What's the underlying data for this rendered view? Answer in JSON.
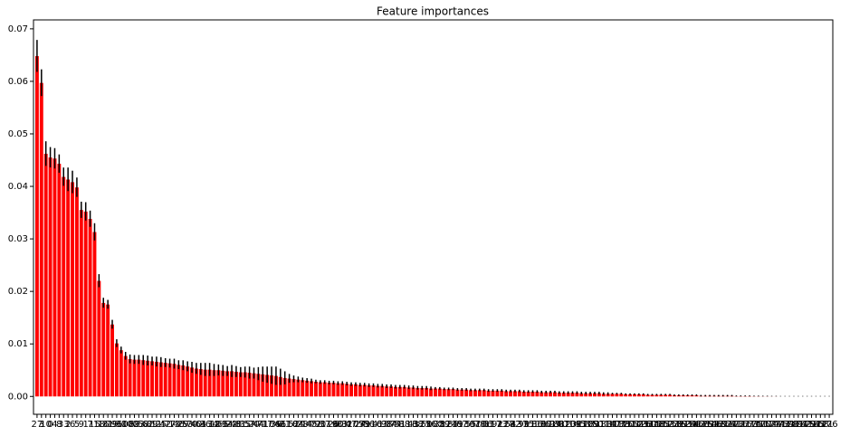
{
  "chart_data": {
    "type": "bar",
    "title": "Feature importances",
    "categories": [
      "27",
      "3",
      "10",
      "0",
      "4",
      "8",
      "33",
      "2",
      "6",
      "5",
      "9",
      "1",
      "7",
      "15",
      "18",
      "16",
      "31",
      "19",
      "96",
      "30",
      "108",
      "100",
      "69",
      "23",
      "58",
      "62",
      "89",
      "11",
      "25",
      "42",
      "77",
      "13",
      "46",
      "29",
      "53",
      "70",
      "40",
      "64",
      "36",
      "134",
      "12",
      "101",
      "65",
      "94",
      "22",
      "48",
      "81",
      "35",
      "57",
      "20",
      "44",
      "71",
      "17",
      "104",
      "39",
      "66",
      "21",
      "110",
      "52",
      "84",
      "28",
      "14",
      "45",
      "72",
      "90",
      "37",
      "119",
      "26",
      "60",
      "83",
      "32",
      "47",
      "105",
      "24",
      "79",
      "56",
      "116",
      "41",
      "63",
      "98",
      "34",
      "74",
      "51",
      "88",
      "113",
      "43",
      "68",
      "125",
      "50",
      "76",
      "102",
      "38",
      "59",
      "121",
      "85",
      "49",
      "67",
      "130",
      "55",
      "97",
      "78",
      "106",
      "61",
      "117",
      "92",
      "73",
      "127",
      "54",
      "82",
      "131",
      "99",
      "75",
      "111",
      "86",
      "136",
      "80",
      "118",
      "95",
      "140",
      "87",
      "123",
      "103",
      "145",
      "93",
      "128",
      "109",
      "150",
      "91",
      "133",
      "114",
      "147",
      "107",
      "138",
      "120",
      "155",
      "112",
      "143",
      "126",
      "160",
      "115",
      "148",
      "135",
      "152",
      "122",
      "158",
      "139",
      "163",
      "124",
      "156",
      "142",
      "166",
      "129",
      "161",
      "146",
      "169",
      "132",
      "164",
      "151",
      "172",
      "137",
      "167",
      "153",
      "175",
      "141",
      "170",
      "157",
      "177",
      "144",
      "173",
      "159",
      "178",
      "149",
      "174",
      "162",
      "179",
      "154",
      "165",
      "168",
      "171",
      "176"
    ],
    "values": [
      0.0648,
      0.0597,
      0.0462,
      0.0455,
      0.0453,
      0.0443,
      0.0418,
      0.0413,
      0.0408,
      0.0398,
      0.0355,
      0.0352,
      0.0338,
      0.0313,
      0.022,
      0.0178,
      0.0175,
      0.0137,
      0.0101,
      0.0088,
      0.0077,
      0.0071,
      0.007,
      0.007,
      0.0069,
      0.0068,
      0.0067,
      0.0066,
      0.0065,
      0.0064,
      0.0063,
      0.0062,
      0.006,
      0.0059,
      0.0057,
      0.0055,
      0.0053,
      0.0052,
      0.0051,
      0.0051,
      0.005,
      0.005,
      0.0049,
      0.0048,
      0.0048,
      0.0047,
      0.0046,
      0.0046,
      0.0045,
      0.0044,
      0.0043,
      0.0042,
      0.0041,
      0.004,
      0.0039,
      0.0037,
      0.0035,
      0.0034,
      0.0033,
      0.0032,
      0.0031,
      0.003,
      0.0029,
      0.0028,
      0.0027,
      0.0027,
      0.0026,
      0.0026,
      0.0025,
      0.0025,
      0.0024,
      0.0023,
      0.0023,
      0.0022,
      0.0022,
      0.0021,
      0.0021,
      0.002,
      0.002,
      0.0019,
      0.0019,
      0.0018,
      0.0018,
      0.0018,
      0.0017,
      0.0017,
      0.0016,
      0.0016,
      0.0016,
      0.0015,
      0.0015,
      0.0015,
      0.0014,
      0.0014,
      0.0014,
      0.0013,
      0.0013,
      0.0013,
      0.0012,
      0.0012,
      0.0012,
      0.0012,
      0.0011,
      0.0011,
      0.0011,
      0.0011,
      0.001,
      0.001,
      0.001,
      0.001,
      0.0009,
      0.0009,
      0.0009,
      0.0009,
      0.0008,
      0.0008,
      0.0008,
      0.0008,
      0.0007,
      0.0007,
      0.0007,
      0.0007,
      0.0007,
      0.0006,
      0.0006,
      0.0006,
      0.0006,
      0.0006,
      0.0005,
      0.0005,
      0.0005,
      0.0005,
      0.0005,
      0.0004,
      0.0004,
      0.0004,
      0.0004,
      0.0004,
      0.0003,
      0.0003,
      0.0003,
      0.0003,
      0.0003,
      0.0003,
      0.0002,
      0.0002,
      0.0002,
      0.0002,
      0.0002,
      0.0002,
      0.0001,
      0.0001,
      0.0001,
      0.0001,
      0.0001,
      0.0001,
      0.0001,
      0.0001,
      5e-05,
      5e-05,
      5e-05,
      5e-05,
      3e-05,
      3e-05,
      2e-05,
      2e-05,
      1e-05,
      1e-05,
      0,
      0,
      0,
      0,
      0,
      0,
      0,
      0,
      0,
      0,
      0,
      0
    ],
    "errors": [
      0.003,
      0.0025,
      0.0023,
      0.0019,
      0.0019,
      0.0017,
      0.0017,
      0.0022,
      0.0021,
      0.0018,
      0.0015,
      0.0017,
      0.0015,
      0.0016,
      0.0012,
      0.0009,
      0.0008,
      0.0008,
      0.0007,
      0.0006,
      0.0007,
      0.0008,
      0.0008,
      0.0008,
      0.0009,
      0.0009,
      0.0008,
      0.0009,
      0.0009,
      0.0008,
      0.0008,
      0.0009,
      0.0008,
      0.0009,
      0.0009,
      0.001,
      0.001,
      0.0011,
      0.0012,
      0.0012,
      0.0011,
      0.001,
      0.001,
      0.0009,
      0.0011,
      0.001,
      0.0009,
      0.001,
      0.0011,
      0.001,
      0.0012,
      0.0014,
      0.0015,
      0.0016,
      0.0017,
      0.0015,
      0.0012,
      0.0008,
      0.0006,
      0.0005,
      0.0004,
      0.0004,
      0.0004,
      0.0003,
      0.0003,
      0.0003,
      0.0003,
      0.0003,
      0.0003,
      0.0003,
      0.0003,
      0.0003,
      0.0003,
      0.0003,
      0.0003,
      0.0003,
      0.0003,
      0.0003,
      0.0003,
      0.0003,
      0.0003,
      0.0003,
      0.0003,
      0.0003,
      0.0003,
      0.0003,
      0.0003,
      0.0003,
      0.0003,
      0.0003,
      0.0002,
      0.0002,
      0.0002,
      0.0002,
      0.0002,
      0.0002,
      0.0002,
      0.0002,
      0.0002,
      0.0002,
      0.0002,
      0.0002,
      0.0002,
      0.0002,
      0.0002,
      0.0002,
      0.0002,
      0.0002,
      0.0002,
      0.0002,
      0.0002,
      0.0002,
      0.0002,
      0.0002,
      0.0002,
      0.0002,
      0.0002,
      0.0002,
      0.0002,
      0.0002,
      0.0002,
      0.0002,
      0.0002,
      0.0002,
      0.0002,
      0.0002,
      0.0002,
      0.0002,
      0.0002,
      0.0002,
      0.0001,
      0.0001,
      0.0001,
      0.0001,
      0.0001,
      0.0001,
      0.0001,
      0.0001,
      0.0001,
      0.0001,
      0.0001,
      0.0001,
      0.0001,
      0.0001,
      0.0001,
      0.0001,
      0.0001,
      0.0001,
      0.0001,
      0.0001,
      0.0001,
      0.0001,
      0.0001,
      0.0001,
      0.0001,
      0.0001,
      0.0001,
      0.0001,
      5e-05,
      5e-05,
      5e-05,
      5e-05,
      3e-05,
      3e-05,
      2e-05,
      2e-05,
      1e-05,
      1e-05,
      0,
      0,
      0,
      0,
      0,
      0,
      0,
      0,
      0,
      0,
      0,
      0
    ],
    "color": "#ff0000",
    "error_color": "#000000",
    "ylim": [
      -0.0034,
      0.0717
    ],
    "yticks": [
      {
        "value": 0,
        "label": "0.00"
      },
      {
        "value": 0.01,
        "label": "0.01"
      },
      {
        "value": 0.02,
        "label": "0.02"
      },
      {
        "value": 0.03,
        "label": "0.03"
      },
      {
        "value": 0.04,
        "label": "0.04"
      },
      {
        "value": 0.05,
        "label": "0.05"
      },
      {
        "value": 0.06,
        "label": "0.06"
      },
      {
        "value": 0.07,
        "label": "0.07"
      }
    ],
    "grid": false
  }
}
